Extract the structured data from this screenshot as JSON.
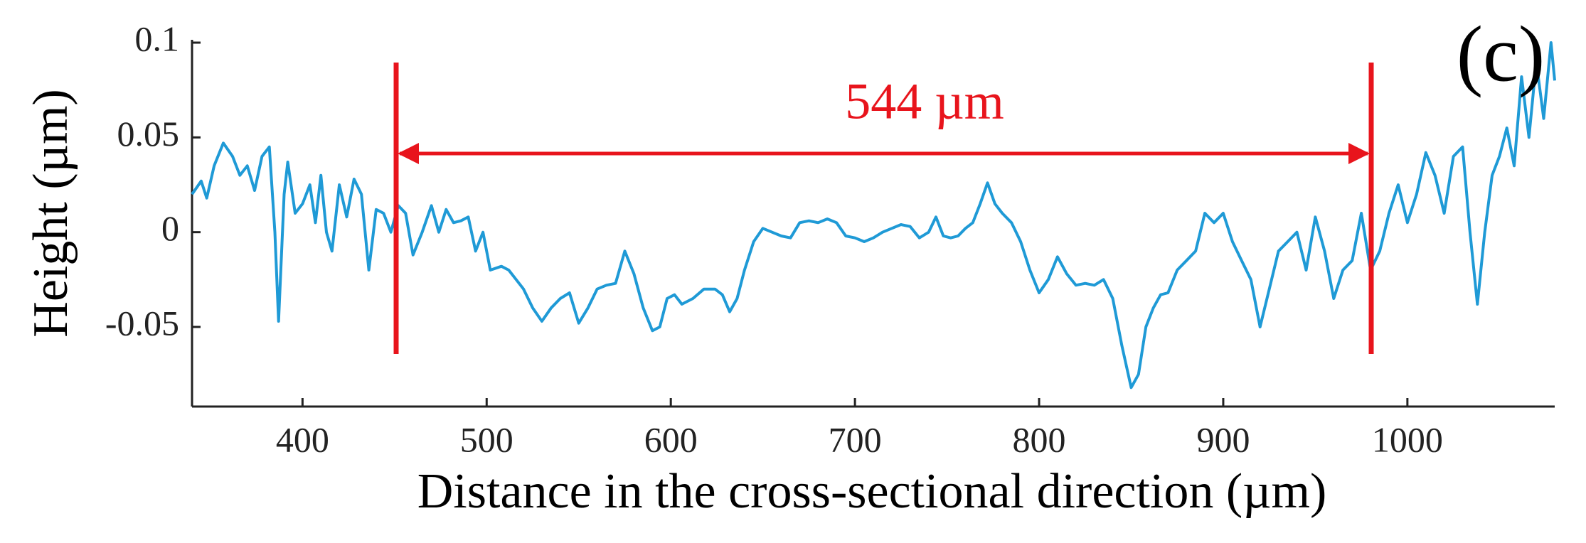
{
  "chart_data": {
    "type": "line",
    "ylabel": "Height (µm)",
    "xlabel": "Distance in the cross-sectional direction (µm)",
    "annotations": [
      "544 µm",
      "(c)"
    ],
    "color": "#1f9ad6",
    "xlim": [
      340,
      1080
    ],
    "xticks": [
      400,
      500,
      600,
      700,
      800,
      900,
      1000
    ],
    "ylim": [
      -0.092,
      0.1
    ],
    "yticks": [
      0.1,
      0.05,
      0,
      -0.05
    ],
    "x": [
      340,
      345,
      348,
      352,
      357,
      362,
      366,
      370,
      374,
      378,
      382,
      385,
      387,
      390,
      392,
      396,
      400,
      404,
      407,
      410,
      413,
      416,
      420,
      424,
      428,
      432,
      436,
      440,
      444,
      448,
      452,
      456,
      460,
      465,
      470,
      474,
      478,
      482,
      486,
      490,
      494,
      498,
      502,
      508,
      512,
      516,
      520,
      525,
      530,
      535,
      540,
      545,
      550,
      555,
      560,
      565,
      570,
      575,
      580,
      585,
      590,
      594,
      598,
      602,
      606,
      612,
      618,
      624,
      628,
      632,
      636,
      640,
      645,
      650,
      655,
      660,
      665,
      670,
      675,
      680,
      685,
      690,
      695,
      700,
      705,
      710,
      715,
      720,
      725,
      730,
      735,
      740,
      744,
      748,
      752,
      756,
      760,
      764,
      768,
      772,
      776,
      780,
      785,
      790,
      795,
      800,
      805,
      810,
      815,
      820,
      825,
      830,
      835,
      840,
      845,
      850,
      854,
      858,
      862,
      866,
      870,
      875,
      880,
      885,
      890,
      895,
      900,
      905,
      910,
      915,
      920,
      925,
      930,
      935,
      940,
      945,
      950,
      955,
      960,
      965,
      970,
      975,
      980,
      985,
      990,
      995,
      1000,
      1005,
      1010,
      1015,
      1020,
      1025,
      1030,
      1034,
      1038,
      1042,
      1046,
      1050,
      1054,
      1058,
      1062,
      1066,
      1070,
      1074,
      1078,
      1080
    ],
    "values": [
      0.02,
      0.027,
      0.018,
      0.035,
      0.047,
      0.04,
      0.03,
      0.035,
      0.022,
      0.04,
      0.045,
      0.0,
      -0.047,
      0.02,
      0.037,
      0.01,
      0.015,
      0.025,
      0.005,
      0.03,
      0.0,
      -0.01,
      0.025,
      0.008,
      0.028,
      0.02,
      -0.02,
      0.012,
      0.01,
      0.0,
      0.014,
      0.01,
      -0.012,
      0.0,
      0.014,
      0.0,
      0.012,
      0.005,
      0.006,
      0.008,
      -0.01,
      0.0,
      -0.02,
      -0.018,
      -0.02,
      -0.025,
      -0.03,
      -0.04,
      -0.047,
      -0.04,
      -0.035,
      -0.032,
      -0.048,
      -0.04,
      -0.03,
      -0.028,
      -0.027,
      -0.01,
      -0.022,
      -0.04,
      -0.052,
      -0.05,
      -0.035,
      -0.033,
      -0.038,
      -0.035,
      -0.03,
      -0.03,
      -0.033,
      -0.042,
      -0.035,
      -0.02,
      -0.005,
      0.002,
      0.0,
      -0.002,
      -0.003,
      0.005,
      0.006,
      0.005,
      0.007,
      0.005,
      -0.002,
      -0.003,
      -0.005,
      -0.003,
      0.0,
      0.002,
      0.004,
      0.003,
      -0.003,
      0.0,
      0.008,
      -0.002,
      -0.003,
      -0.002,
      0.002,
      0.005,
      0.015,
      0.026,
      0.015,
      0.01,
      0.005,
      -0.005,
      -0.02,
      -0.032,
      -0.025,
      -0.013,
      -0.022,
      -0.028,
      -0.027,
      -0.028,
      -0.025,
      -0.035,
      -0.06,
      -0.082,
      -0.075,
      -0.05,
      -0.04,
      -0.033,
      -0.032,
      -0.02,
      -0.015,
      -0.01,
      0.01,
      0.005,
      0.01,
      -0.005,
      -0.015,
      -0.025,
      -0.05,
      -0.03,
      -0.01,
      -0.005,
      0.0,
      -0.02,
      0.008,
      -0.01,
      -0.035,
      -0.02,
      -0.015,
      0.01,
      -0.02,
      -0.01,
      0.01,
      0.025,
      0.005,
      0.02,
      0.042,
      0.03,
      0.01,
      0.04,
      0.045,
      0.0,
      -0.038,
      0.0,
      0.03,
      0.04,
      0.055,
      0.035,
      0.082,
      0.05,
      0.09,
      0.06,
      0.1,
      0.08
    ]
  }
}
